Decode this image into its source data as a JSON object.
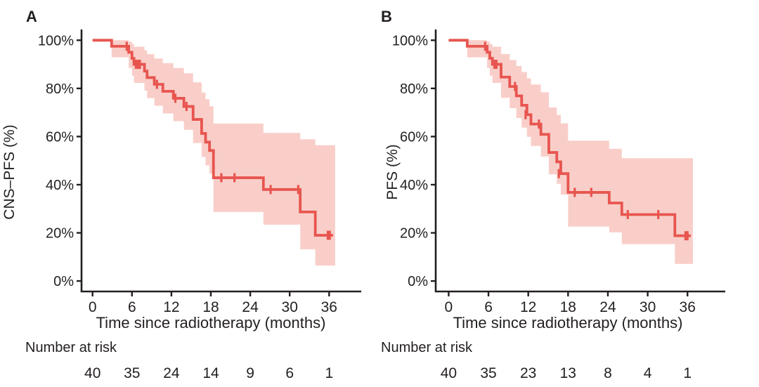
{
  "figure": {
    "background": "#ffffff",
    "text_color": "#231f20",
    "description": "Two-panel Kaplan-Meier survival figure with 95% confidence bands and number-at-risk tables"
  },
  "chart_data": [
    {
      "type": "line",
      "subtype": "kaplan_meier_step",
      "panel_label": "A",
      "ylabel": "CNS–PFS (%)",
      "xlabel": "Time since radiotherapy (months)",
      "xlim": [
        0,
        39
      ],
      "ylim": [
        0,
        100
      ],
      "xticks": [
        0,
        6,
        12,
        18,
        24,
        30,
        36
      ],
      "yticks": [
        0,
        20,
        40,
        60,
        80,
        100
      ],
      "ytick_suffix": "%",
      "grid": false,
      "legend": null,
      "curve_color": "#E8554F",
      "band_color": "#F9CEC9",
      "steps": [
        [
          0,
          100
        ],
        [
          2.9,
          97.5
        ],
        [
          5.5,
          95
        ],
        [
          6.0,
          92.5
        ],
        [
          6.3,
          90
        ],
        [
          7.9,
          87.2
        ],
        [
          8.3,
          84.5
        ],
        [
          9.4,
          81.7
        ],
        [
          10.7,
          78.8
        ],
        [
          12.3,
          75.9
        ],
        [
          13.9,
          72.5
        ],
        [
          15.3,
          67.1
        ],
        [
          16.6,
          61.3
        ],
        [
          17.2,
          57.7
        ],
        [
          17.8,
          54.2
        ],
        [
          18.4,
          42.9
        ],
        [
          26.0,
          38.0
        ],
        [
          31.6,
          28.7
        ],
        [
          33.9,
          19.0
        ]
      ],
      "curve_end": 36.6,
      "censor_marks": [
        [
          5.2,
          97.5
        ],
        [
          6.6,
          90
        ],
        [
          6.9,
          90
        ],
        [
          7.2,
          90
        ],
        [
          9.8,
          81.7
        ],
        [
          12.6,
          75.9
        ],
        [
          14.3,
          72.5
        ],
        [
          19.6,
          42.9
        ],
        [
          21.6,
          42.9
        ],
        [
          27.1,
          38.0
        ],
        [
          31.3,
          38.0
        ],
        [
          35.8,
          19.0
        ],
        [
          36.1,
          19.0
        ]
      ],
      "confidence_band": [
        [
          0,
          100,
          100
        ],
        [
          2.9,
          92.9,
          100
        ],
        [
          5.5,
          88.5,
          99.4
        ],
        [
          6.0,
          85.3,
          98.4
        ],
        [
          6.3,
          82.3,
          97.3
        ],
        [
          7.9,
          79.1,
          95.8
        ],
        [
          8.3,
          76.0,
          94.2
        ],
        [
          9.4,
          72.8,
          92.4
        ],
        [
          10.7,
          69.6,
          90.5
        ],
        [
          12.3,
          66.4,
          88.5
        ],
        [
          13.9,
          62.8,
          86.3
        ],
        [
          15.3,
          57.3,
          82.5
        ],
        [
          16.6,
          51.5,
          78.3
        ],
        [
          17.2,
          48.0,
          75.5
        ],
        [
          17.8,
          44.6,
          72.6
        ],
        [
          18.4,
          28.7,
          65.4
        ],
        [
          26.0,
          23.4,
          61.5
        ],
        [
          31.6,
          13.2,
          58.9
        ],
        [
          33.9,
          6.4,
          56.4
        ]
      ],
      "number_at_risk": {
        "label": "Number at risk",
        "times": [
          0,
          6,
          12,
          18,
          24,
          30,
          36
        ],
        "values": [
          40,
          35,
          24,
          14,
          9,
          6,
          1
        ]
      }
    },
    {
      "type": "line",
      "subtype": "kaplan_meier_step",
      "panel_label": "B",
      "ylabel": "PFS (%)",
      "xlabel": "Time since radiotherapy (months)",
      "xlim": [
        0,
        39
      ],
      "ylim": [
        0,
        100
      ],
      "xticks": [
        0,
        6,
        12,
        18,
        24,
        30,
        36
      ],
      "yticks": [
        0,
        20,
        40,
        60,
        80,
        100
      ],
      "ytick_suffix": "%",
      "grid": false,
      "legend": null,
      "curve_color": "#E8554F",
      "band_color": "#F9CEC9",
      "steps": [
        [
          0,
          100
        ],
        [
          2.8,
          97.5
        ],
        [
          5.8,
          95
        ],
        [
          6.2,
          92.5
        ],
        [
          6.6,
          90
        ],
        [
          7.9,
          84.7
        ],
        [
          9.2,
          80.8
        ],
        [
          10.2,
          76.9
        ],
        [
          11.0,
          73.0
        ],
        [
          11.8,
          69.1
        ],
        [
          12.4,
          65.2
        ],
        [
          13.9,
          60.9
        ],
        [
          15.1,
          53.4
        ],
        [
          16.3,
          49.5
        ],
        [
          16.9,
          44.6
        ],
        [
          18.0,
          36.8
        ],
        [
          24.2,
          32.4
        ],
        [
          26.1,
          27.6
        ],
        [
          34.1,
          18.8
        ]
      ],
      "curve_end": 36.5,
      "censor_marks": [
        [
          5.5,
          97.5
        ],
        [
          6.9,
          90
        ],
        [
          7.2,
          90
        ],
        [
          10.0,
          80.8
        ],
        [
          11.6,
          69.1
        ],
        [
          13.6,
          65.2
        ],
        [
          16.6,
          44.6
        ],
        [
          19.0,
          36.8
        ],
        [
          21.5,
          36.8
        ],
        [
          27.0,
          27.6
        ],
        [
          31.6,
          27.6
        ],
        [
          35.7,
          18.8
        ],
        [
          36.0,
          18.8
        ]
      ],
      "confidence_band": [
        [
          0,
          100,
          100
        ],
        [
          2.8,
          92.9,
          100
        ],
        [
          5.8,
          88.5,
          99.4
        ],
        [
          6.2,
          85.3,
          98.4
        ],
        [
          6.6,
          82.3,
          97.3
        ],
        [
          7.9,
          76.1,
          94.3
        ],
        [
          9.2,
          71.8,
          91.8
        ],
        [
          10.2,
          67.7,
          89.3
        ],
        [
          11.0,
          63.7,
          86.8
        ],
        [
          11.8,
          59.9,
          84.2
        ],
        [
          12.4,
          56.1,
          81.6
        ],
        [
          13.9,
          51.7,
          78.4
        ],
        [
          15.1,
          44.3,
          72.1
        ],
        [
          16.3,
          40.4,
          69.0
        ],
        [
          16.9,
          35.9,
          65.5
        ],
        [
          18.0,
          22.6,
          58.3
        ],
        [
          24.2,
          20.2,
          54.9
        ],
        [
          26.1,
          15.3,
          51.0
        ],
        [
          34.1,
          7.1,
          51.0
        ]
      ],
      "number_at_risk": {
        "label": "Number at risk",
        "times": [
          0,
          6,
          12,
          18,
          24,
          30,
          36
        ],
        "values": [
          40,
          35,
          23,
          13,
          8,
          4,
          1
        ]
      }
    }
  ]
}
